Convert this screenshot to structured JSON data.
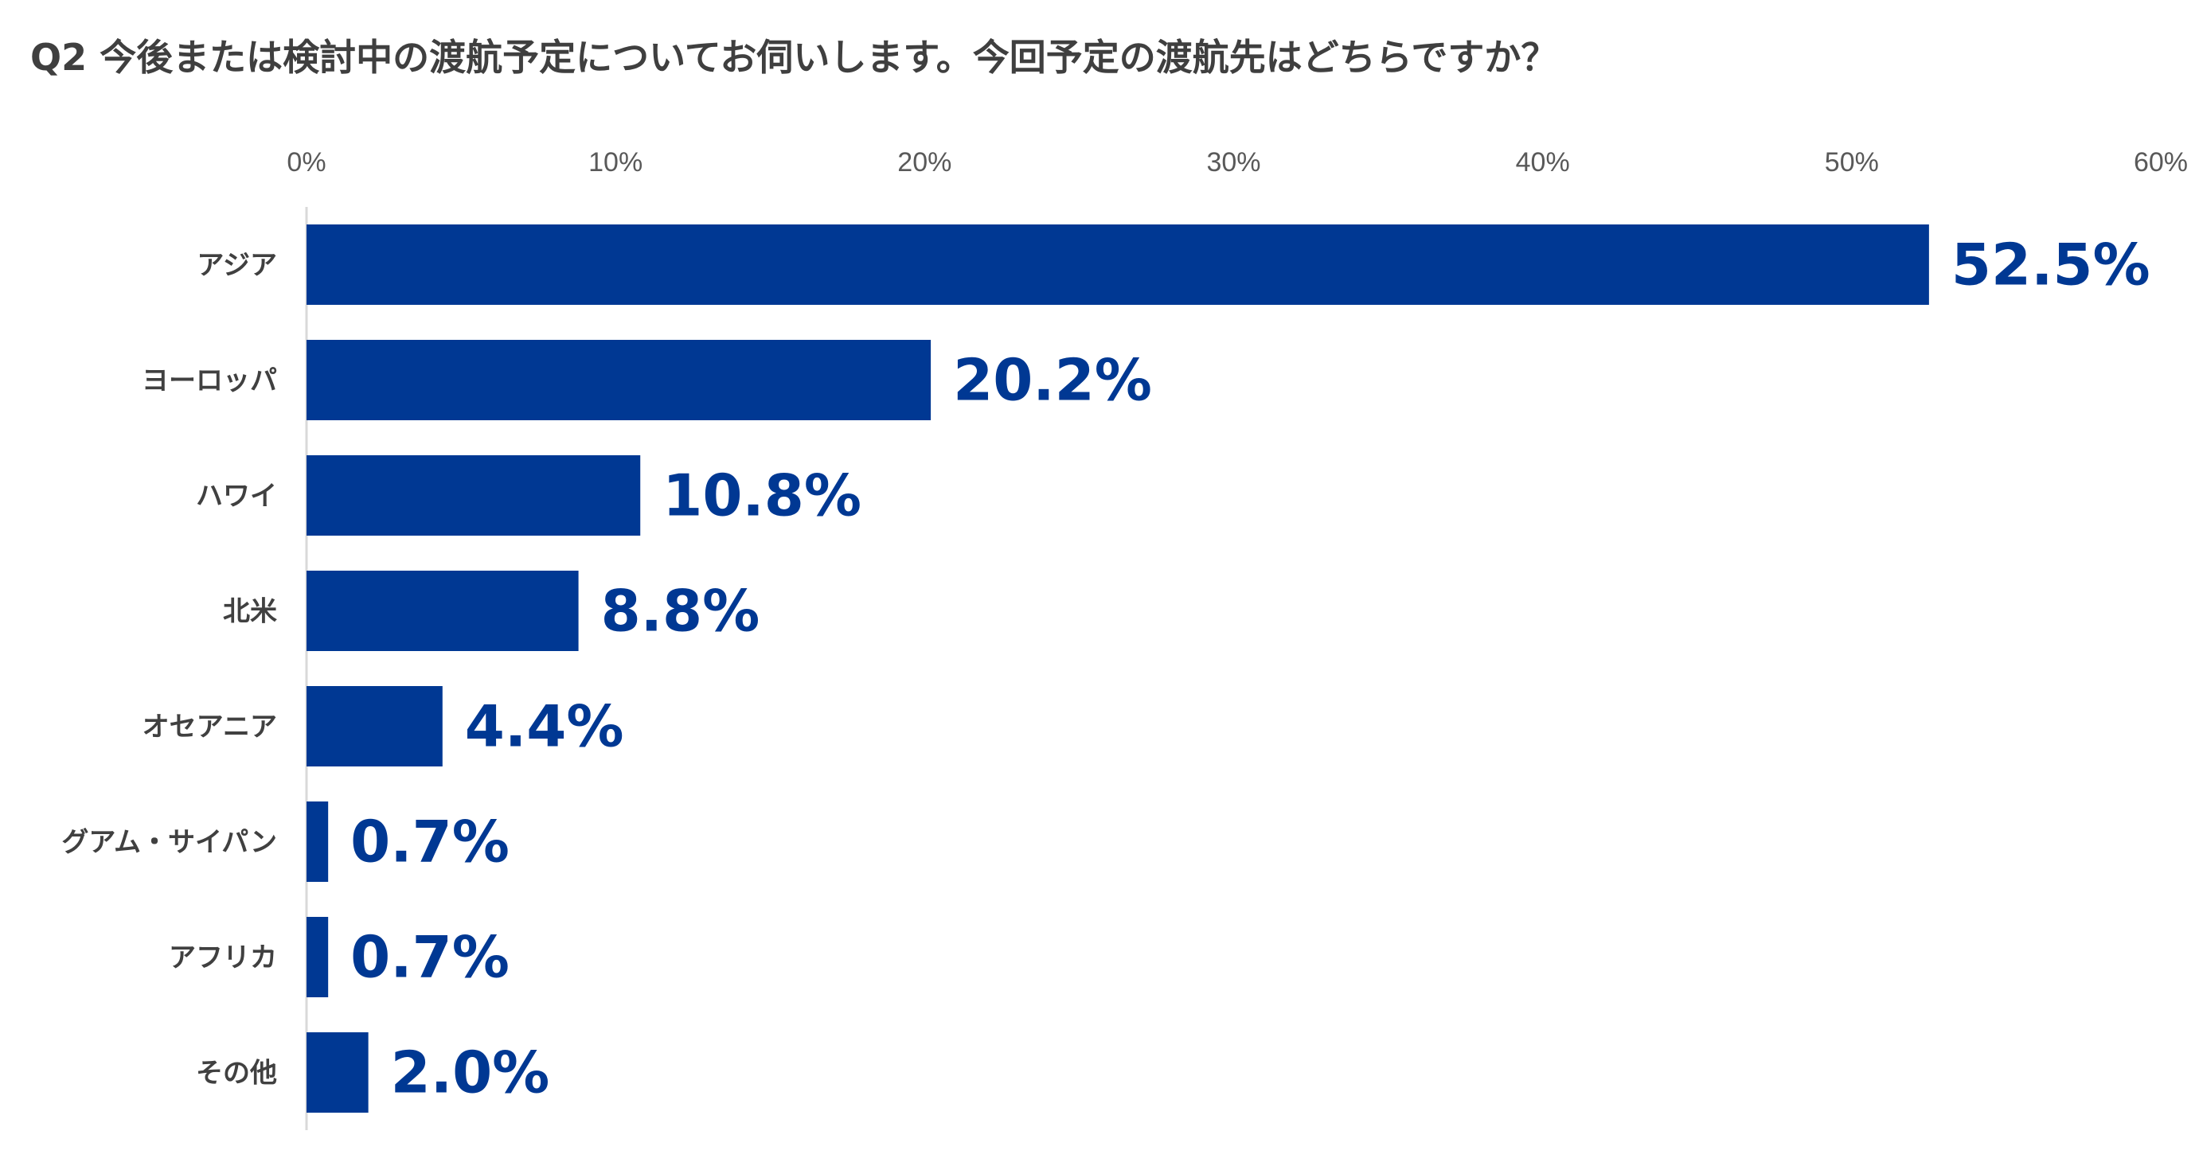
{
  "chart_data": {
    "type": "bar",
    "orientation": "horizontal",
    "title": "Q2 今後または検討中の渡航予定についてお伺いします。今回予定の渡航先はどちらですか？",
    "categories": [
      "アジア",
      "ヨーロッパ",
      "ハワイ",
      "北米",
      "オセアニア",
      "グアム・サイパン",
      "アフリカ",
      "その他"
    ],
    "values": [
      52.5,
      20.2,
      10.8,
      8.8,
      4.4,
      0.7,
      0.7,
      2.0
    ],
    "value_labels": [
      "52.5%",
      "20.2%",
      "10.8%",
      "8.8%",
      "4.4%",
      "0.7%",
      "0.7%",
      "2.0%"
    ],
    "xlim": [
      0,
      60
    ],
    "xticks": [
      0,
      10,
      20,
      30,
      40,
      50,
      60
    ],
    "xtick_labels": [
      "0%",
      "10%",
      "20%",
      "30%",
      "40%",
      "50%",
      "60%"
    ],
    "xaxis_position": "top",
    "grid": false,
    "legend": "none",
    "colors": {
      "bar": "#003893",
      "value_label": "#003893",
      "axis_line": "#d9d9d9"
    }
  }
}
